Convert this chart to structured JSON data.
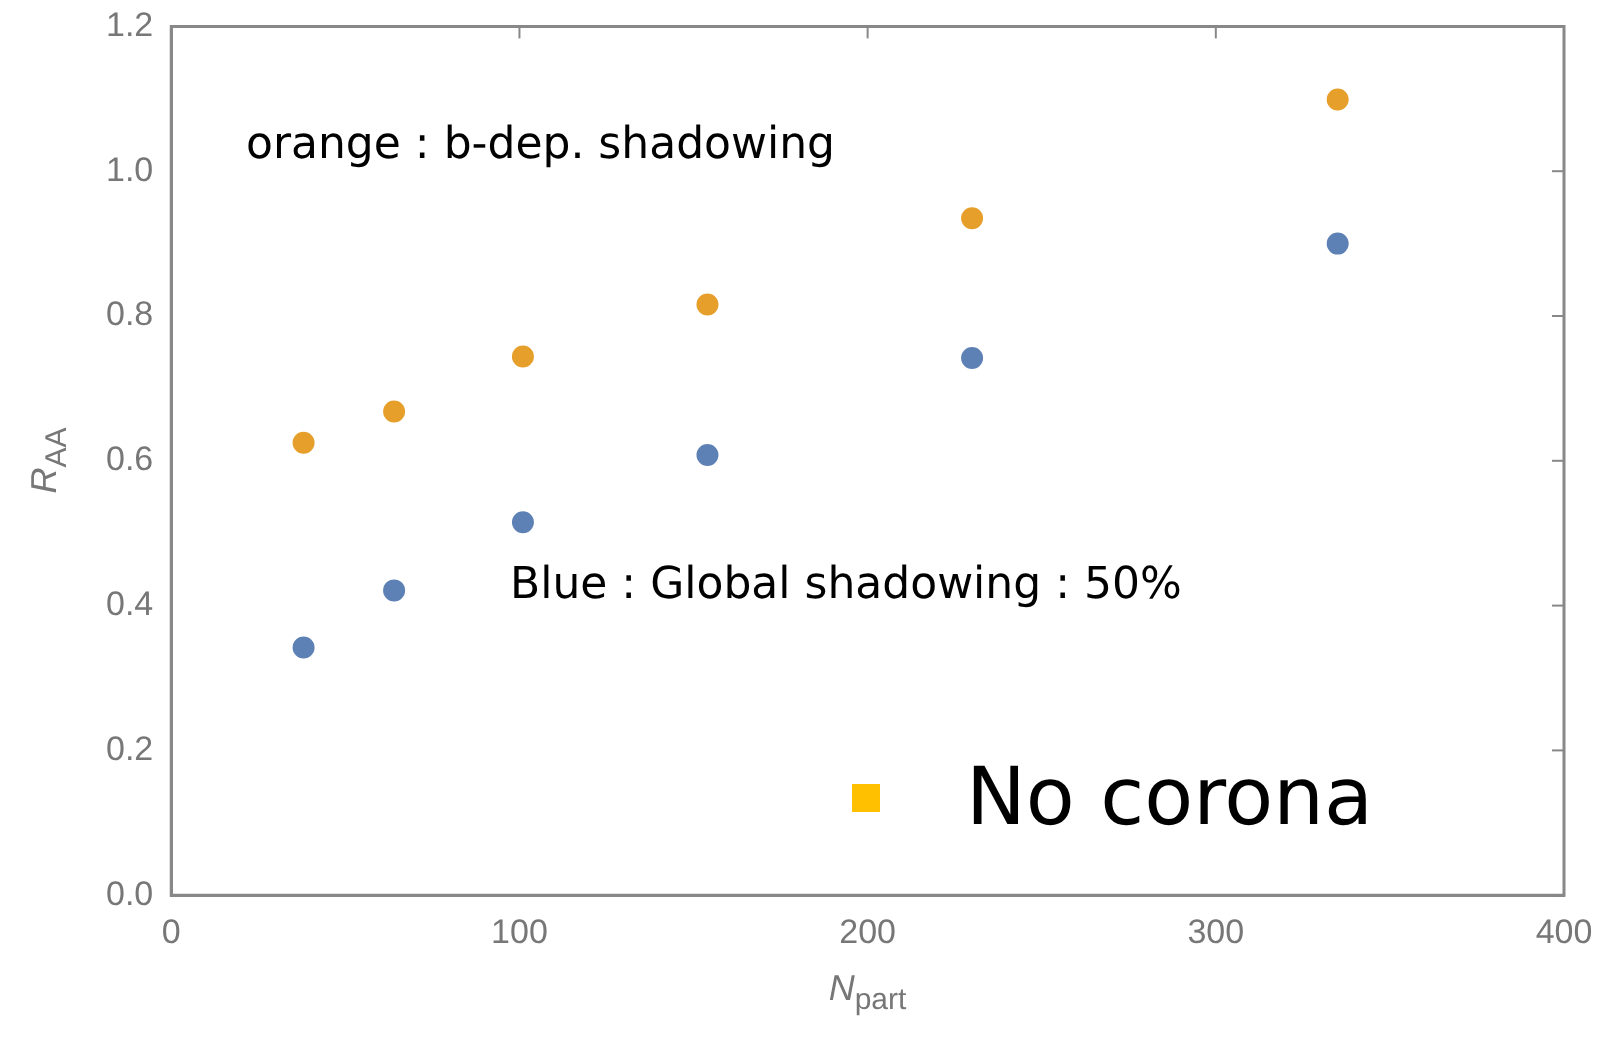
{
  "chart_data": {
    "type": "scatter",
    "xlabel": "N$_{part}$",
    "ylabel": "R$_{AA}$",
    "x": [
      38,
      64,
      101,
      154,
      230,
      335
    ],
    "series": [
      {
        "color": "#e69f2a",
        "values": [
          0.625,
          0.668,
          0.744,
          0.816,
          0.935,
          1.099
        ]
      },
      {
        "color": "#5e81b5",
        "values": [
          0.342,
          0.421,
          0.515,
          0.608,
          0.742,
          0.9
        ]
      }
    ],
    "xlim": [
      0,
      400
    ],
    "xticks": [
      0,
      100,
      200,
      300,
      400
    ],
    "ylim": [
      0,
      1.2
    ],
    "yticks": [
      {
        "value": 0,
        "label": "0.0"
      },
      0.2,
      0.4,
      0.6,
      0.8,
      {
        "value": 1,
        "label": "1.0"
      },
      1.2
    ],
    "marker": "circle",
    "grid": false,
    "legend": false,
    "annotations": [
      "orange : b-dep. shadowing",
      "Blue : Global shadowing : 50%",
      "No corona"
    ]
  }
}
